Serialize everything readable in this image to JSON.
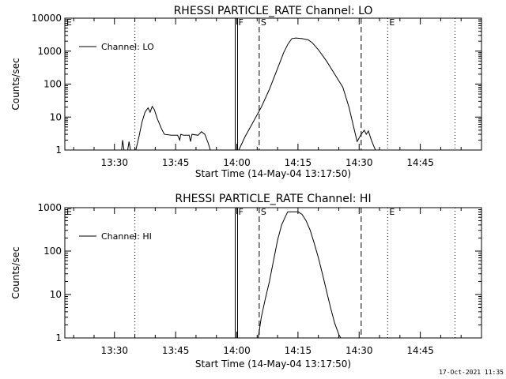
{
  "footer": {
    "timestamp": "17-Oct-2021 11:35"
  },
  "chart_data": [
    {
      "type": "line",
      "title": "RHESSI PARTICLE_RATE Channel: LO",
      "xlabel": "Start Time (14-May-04 13:17:50)",
      "ylabel": "Counts/sec",
      "y_scale": "log",
      "ylim": [
        1,
        10000
      ],
      "xlim": [
        "13:17:50",
        "15:00:00"
      ],
      "x_ticks": [
        "13:30",
        "13:45",
        "14:00",
        "14:15",
        "14:30",
        "14:45"
      ],
      "y_ticks": [
        "1",
        "10",
        "100",
        "1000",
        "10000"
      ],
      "legend": {
        "label": "Channel: LO",
        "position": "top-left"
      },
      "markers": [
        {
          "label": "E",
          "time": "13:17:50",
          "style": "dotted"
        },
        {
          "label": "",
          "time": "13:35:00",
          "style": "dotted"
        },
        {
          "label": "F",
          "time": "14:00:00",
          "style": "solid"
        },
        {
          "label": "S",
          "time": "14:05:30",
          "style": "dashed"
        },
        {
          "label": "",
          "time": "14:30:30",
          "style": "dashed"
        },
        {
          "label": "E",
          "time": "14:37:00",
          "style": "dotted"
        },
        {
          "label": "",
          "time": "14:53:30",
          "style": "dotted"
        }
      ],
      "series": [
        {
          "name": "Channel: LO",
          "segments": [
            [
              [
                "13:31:45",
                1
              ],
              [
                "13:32:00",
                2
              ],
              [
                "13:32:20",
                1
              ],
              [
                "13:33:15",
                1
              ],
              [
                "13:33:35",
                1.8
              ],
              [
                "13:33:55",
                1
              ]
            ],
            [
              [
                "13:35:15",
                1
              ],
              [
                "13:36:00",
                2.5
              ],
              [
                "13:36:45",
                7
              ],
              [
                "13:37:30",
                14
              ],
              [
                "13:38:15",
                19
              ],
              [
                "13:38:45",
                14
              ],
              [
                "13:39:15",
                21
              ],
              [
                "13:39:45",
                17
              ],
              [
                "13:40:30",
                9
              ],
              [
                "13:41:30",
                4.5
              ],
              [
                "13:42:15",
                3
              ],
              [
                "13:44:00",
                2.8
              ],
              [
                "13:45:30",
                2.8
              ],
              [
                "13:46:00",
                2
              ],
              [
                "13:46:15",
                3
              ],
              [
                "13:47:00",
                2.8
              ],
              [
                "13:48:20",
                2.8
              ],
              [
                "13:48:40",
                1.8
              ],
              [
                "13:49:00",
                3
              ],
              [
                "13:50:30",
                2.8
              ],
              [
                "13:51:20",
                3.6
              ],
              [
                "13:52:10",
                3
              ],
              [
                "13:53:00",
                1.6
              ],
              [
                "13:53:30",
                1
              ]
            ],
            [
              [
                "14:00:30",
                1
              ],
              [
                "14:02:00",
                2.5
              ],
              [
                "14:04:00",
                7
              ],
              [
                "14:06:00",
                20
              ],
              [
                "14:08:00",
                70
              ],
              [
                "14:10:00",
                300
              ],
              [
                "14:11:30",
                900
              ],
              [
                "14:12:30",
                1600
              ],
              [
                "14:13:30",
                2400
              ],
              [
                "14:14:30",
                2500
              ],
              [
                "14:16:00",
                2400
              ],
              [
                "14:17:30",
                2200
              ],
              [
                "14:18:30",
                1800
              ],
              [
                "14:20:00",
                1100
              ],
              [
                "14:22:00",
                500
              ],
              [
                "14:24:00",
                200
              ],
              [
                "14:26:00",
                80
              ],
              [
                "14:27:30",
                20
              ],
              [
                "14:28:30",
                6
              ],
              [
                "14:29:30",
                1.8
              ],
              [
                "14:30:30",
                3
              ],
              [
                "14:31:15",
                4
              ],
              [
                "14:31:45",
                3
              ],
              [
                "14:32:15",
                3.8
              ],
              [
                "14:33:00",
                2
              ],
              [
                "14:33:30",
                1.4
              ],
              [
                "14:34:00",
                1
              ]
            ]
          ]
        }
      ]
    },
    {
      "type": "line",
      "title": "RHESSI PARTICLE_RATE Channel: HI",
      "xlabel": "Start Time (14-May-04 13:17:50)",
      "ylabel": "Counts/sec",
      "y_scale": "log",
      "ylim": [
        1,
        1000
      ],
      "xlim": [
        "13:17:50",
        "15:00:00"
      ],
      "x_ticks": [
        "13:30",
        "13:45",
        "14:00",
        "14:15",
        "14:30",
        "14:45"
      ],
      "y_ticks": [
        "1",
        "10",
        "100",
        "1000"
      ],
      "legend": {
        "label": "Channel: HI",
        "position": "top-left"
      },
      "markers": [
        {
          "label": "E",
          "time": "13:17:50",
          "style": "dotted"
        },
        {
          "label": "",
          "time": "13:35:00",
          "style": "dotted"
        },
        {
          "label": "F",
          "time": "14:00:00",
          "style": "solid"
        },
        {
          "label": "S",
          "time": "14:05:30",
          "style": "dashed"
        },
        {
          "label": "",
          "time": "14:30:30",
          "style": "dashed"
        },
        {
          "label": "E",
          "time": "14:37:00",
          "style": "dotted"
        },
        {
          "label": "",
          "time": "14:53:30",
          "style": "dotted"
        }
      ],
      "series": [
        {
          "name": "Channel: HI",
          "segments": [
            [
              [
                "14:05:15",
                1
              ],
              [
                "14:06:00",
                3
              ],
              [
                "14:07:00",
                8
              ],
              [
                "14:08:00",
                20
              ],
              [
                "14:09:00",
                60
              ],
              [
                "14:10:00",
                180
              ],
              [
                "14:11:00",
                400
              ],
              [
                "14:12:00",
                650
              ],
              [
                "14:12:30",
                800
              ],
              [
                "14:15:00",
                800
              ],
              [
                "14:16:00",
                700
              ],
              [
                "14:17:00",
                500
              ],
              [
                "14:18:00",
                300
              ],
              [
                "14:19:00",
                150
              ],
              [
                "14:20:00",
                70
              ],
              [
                "14:21:00",
                30
              ],
              [
                "14:22:00",
                12
              ],
              [
                "14:23:00",
                5
              ],
              [
                "14:24:00",
                2.2
              ],
              [
                "14:25:00",
                1.2
              ],
              [
                "14:25:30",
                1
              ]
            ]
          ]
        }
      ]
    }
  ]
}
